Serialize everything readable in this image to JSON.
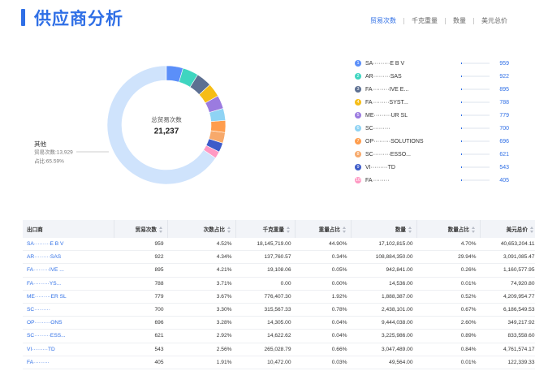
{
  "header": {
    "title": "供应商分析",
    "tabs": [
      "贸易次数",
      "千克重量",
      "数量",
      "美元总价"
    ],
    "active_tab": 0
  },
  "chart_data": {
    "type": "donut",
    "center_title": "总贸易次数",
    "total": {
      "value": 21237,
      "label": "21,237"
    },
    "ranks": [
      1,
      2,
      3,
      4,
      5,
      6,
      7,
      8,
      9,
      10
    ],
    "categories": [
      "SA·········E B V",
      "AR·········SAS",
      "FA·········IVE E...",
      "FA·········SYST...",
      "ME·········UR SL",
      "SC·········",
      "OP·········SOLUTIONS",
      "SC·········ESSO...",
      "VI·········TD",
      "FA·········"
    ],
    "values": [
      959,
      922,
      895,
      788,
      779,
      700,
      696,
      621,
      543,
      405
    ],
    "colors": [
      "#5b8ff9",
      "#3fd5c0",
      "#5d7092",
      "#f6bd16",
      "#9b7be0",
      "#8fd3f4",
      "#ff9d4d",
      "#f7a96b",
      "#3d5bc9",
      "#ff99c3"
    ],
    "other": {
      "name": "其他",
      "value": 13929,
      "value_label": "贸易次数:13,929",
      "share_label": "占比:65.59%",
      "color": "#cfe3fc"
    }
  },
  "table": {
    "columns": [
      "出口商",
      "贸易次数",
      "次数占比",
      "千克重量",
      "重量占比",
      "数量",
      "数量占比",
      "美元总价",
      "总价占比"
    ],
    "rows": [
      [
        "SA·········E B V",
        "959",
        "4.52%",
        "18,145,719.00",
        "44.90%",
        "17,102,815.00",
        "4.70%",
        "40,653,204.11",
        "13.86%"
      ],
      [
        "AR·········SAS",
        "922",
        "4.34%",
        "137,760.57",
        "0.34%",
        "108,884,350.00",
        "29.94%",
        "3,091,085.47",
        "1.05%"
      ],
      [
        "FA·········IVE ...",
        "895",
        "4.21%",
        "19,108.06",
        "0.05%",
        "942,841.00",
        "0.26%",
        "1,160,577.95",
        "0.40%"
      ],
      [
        "FA·········YS...",
        "788",
        "3.71%",
        "0.00",
        "0.00%",
        "14,536.00",
        "0.01%",
        "74,920.80",
        "0.03%"
      ],
      [
        "ME·········ER SL",
        "779",
        "3.67%",
        "776,407.30",
        "1.92%",
        "1,888,387.00",
        "0.52%",
        "4,209,954.77",
        "1.44%"
      ],
      [
        "SC·········",
        "700",
        "3.30%",
        "315,567.33",
        "0.78%",
        "2,438,101.00",
        "0.67%",
        "6,186,549.53",
        "2.11%"
      ],
      [
        "OP·········ONS",
        "696",
        "3.28%",
        "14,305.00",
        "0.04%",
        "9,444,038.00",
        "2.60%",
        "349,217.92",
        "0.12%"
      ],
      [
        "SC·········ESS...",
        "621",
        "2.92%",
        "14,622.62",
        "0.04%",
        "3,225,986.00",
        "0.89%",
        "833,558.60",
        "0.28%"
      ],
      [
        "VI·········TD",
        "543",
        "2.56%",
        "265,028.79",
        "0.66%",
        "3,047,489.00",
        "0.84%",
        "4,761,574.17",
        "1.62%"
      ],
      [
        "FA·········",
        "405",
        "1.91%",
        "10,472.00",
        "0.03%",
        "49,564.00",
        "0.01%",
        "122,339.33",
        "0.04%"
      ]
    ]
  }
}
